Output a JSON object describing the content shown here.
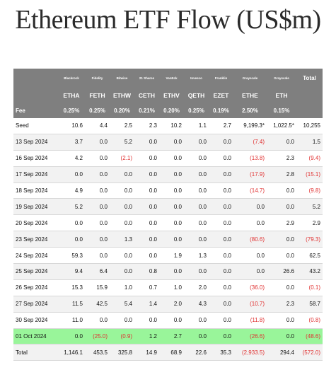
{
  "title": "Ethereum ETF Flow (US$m)",
  "managers": [
    "",
    "Blackrock",
    "Fidelity",
    "Bitwise",
    "21 Shares",
    "VanEck",
    "Invesco",
    "Franklin",
    "Grayscale",
    "Grayscale",
    "Total"
  ],
  "tickers": [
    "",
    "ETHA",
    "FETH",
    "ETHW",
    "CETH",
    "ETHV",
    "QETH",
    "EZET",
    "ETHE",
    "ETH",
    ""
  ],
  "fees": [
    "Fee",
    "0.25%",
    "0.25%",
    "0.20%",
    "0.21%",
    "0.20%",
    "0.25%",
    "0.19%",
    "2.50%",
    "0.15%",
    ""
  ],
  "rows": [
    {
      "date": "Seed",
      "cells": [
        "10.6",
        "4.4",
        "2.5",
        "2.3",
        "10.2",
        "1.1",
        "2.7",
        "9,199.3*",
        "1,022.5*",
        "10,255"
      ]
    },
    {
      "date": "13 Sep 2024",
      "cells": [
        "3.7",
        "0.0",
        "5.2",
        "0.0",
        "0.0",
        "0.0",
        "0.0",
        "(7.4)",
        "0.0",
        "1.5"
      ]
    },
    {
      "date": "16 Sep 2024",
      "cells": [
        "4.2",
        "0.0",
        "(2.1)",
        "0.0",
        "0.0",
        "0.0",
        "0.0",
        "(13.8)",
        "2.3",
        "(9.4)"
      ]
    },
    {
      "date": "17 Sep 2024",
      "cells": [
        "0.0",
        "0.0",
        "0.0",
        "0.0",
        "0.0",
        "0.0",
        "0.0",
        "(17.9)",
        "2.8",
        "(15.1)"
      ]
    },
    {
      "date": "18 Sep 2024",
      "cells": [
        "4.9",
        "0.0",
        "0.0",
        "0.0",
        "0.0",
        "0.0",
        "0.0",
        "(14.7)",
        "0.0",
        "(9.8)"
      ]
    },
    {
      "date": "19 Sep 2024",
      "cells": [
        "5.2",
        "0.0",
        "0.0",
        "0.0",
        "0.0",
        "0.0",
        "0.0",
        "0.0",
        "0.0",
        "5.2"
      ]
    },
    {
      "date": "20 Sep 2024",
      "cells": [
        "0.0",
        "0.0",
        "0.0",
        "0.0",
        "0.0",
        "0.0",
        "0.0",
        "0.0",
        "2.9",
        "2.9"
      ]
    },
    {
      "date": "23 Sep 2024",
      "cells": [
        "0.0",
        "0.0",
        "1.3",
        "0.0",
        "0.0",
        "0.0",
        "0.0",
        "(80.6)",
        "0.0",
        "(79.3)"
      ]
    },
    {
      "date": "24 Sep 2024",
      "cells": [
        "59.3",
        "0.0",
        "0.0",
        "0.0",
        "1.9",
        "1.3",
        "0.0",
        "0.0",
        "0.0",
        "62.5"
      ]
    },
    {
      "date": "25 Sep 2024",
      "cells": [
        "9.4",
        "6.4",
        "0.0",
        "0.8",
        "0.0",
        "0.0",
        "0.0",
        "0.0",
        "26.6",
        "43.2"
      ]
    },
    {
      "date": "26 Sep 2024",
      "cells": [
        "15.3",
        "15.9",
        "1.0",
        "0.7",
        "1.0",
        "2.0",
        "0.0",
        "(36.0)",
        "0.0",
        "(0.1)"
      ]
    },
    {
      "date": "27 Sep 2024",
      "cells": [
        "11.5",
        "42.5",
        "5.4",
        "1.4",
        "2.0",
        "4.3",
        "0.0",
        "(10.7)",
        "2.3",
        "58.7"
      ]
    },
    {
      "date": "30 Sep 2024",
      "cells": [
        "11.0",
        "0.0",
        "0.0",
        "0.0",
        "0.0",
        "0.0",
        "0.0",
        "(11.8)",
        "0.0",
        "(0.8)"
      ]
    },
    {
      "date": "01 Oct 2024",
      "cells": [
        "0.0",
        "(25.0)",
        "(0.9)",
        "1.2",
        "2.7",
        "0.0",
        "0.0",
        "(26.6)",
        "0.0",
        "(48.6)"
      ]
    },
    {
      "date": "Total",
      "cells": [
        "1,146.1",
        "453.5",
        "325.8",
        "14.9",
        "68.9",
        "22.6",
        "35.3",
        "(2,933.5)",
        "294.4",
        "(572.0)"
      ]
    }
  ]
}
